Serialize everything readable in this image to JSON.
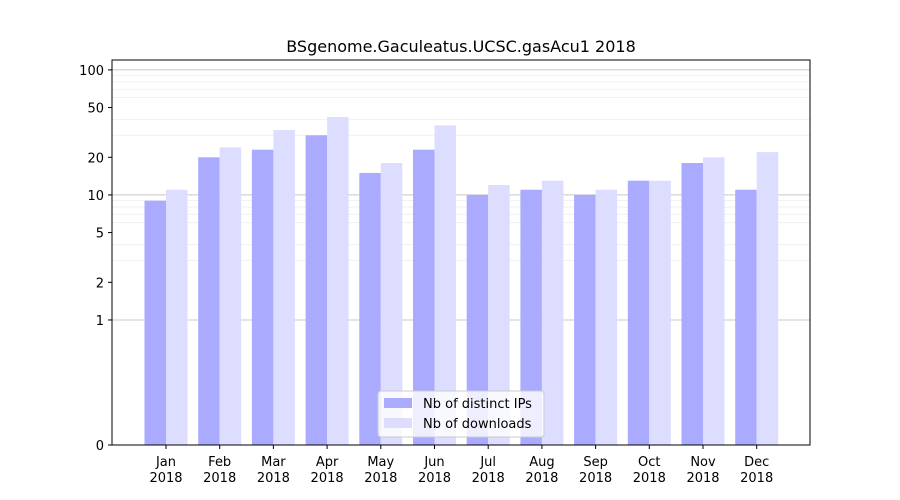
{
  "chart_data": {
    "type": "bar",
    "title": "BSgenome.Gaculeatus.UCSC.gasAcu1 2018",
    "xlabel": "",
    "ylabel": "",
    "yscale": "symlog",
    "ylim": [
      0,
      120
    ],
    "yticks": [
      0,
      1,
      2,
      5,
      10,
      20,
      50,
      100
    ],
    "categories": [
      "Jan\n2018",
      "Feb\n2018",
      "Mar\n2018",
      "Apr\n2018",
      "May\n2018",
      "Jun\n2018",
      "Jul\n2018",
      "Aug\n2018",
      "Sep\n2018",
      "Oct\n2018",
      "Nov\n2018",
      "Dec\n2018"
    ],
    "series": [
      {
        "name": "Nb of distinct IPs",
        "color": "#aaaaff",
        "values": [
          9,
          20,
          23,
          30,
          15,
          23,
          10,
          11,
          10,
          13,
          18,
          11
        ]
      },
      {
        "name": "Nb of downloads",
        "color": "#ddddff",
        "values": [
          11,
          24,
          33,
          42,
          18,
          36,
          12,
          13,
          11,
          13,
          20,
          22
        ]
      }
    ],
    "legend_position": "bottom-center",
    "grid": true
  }
}
